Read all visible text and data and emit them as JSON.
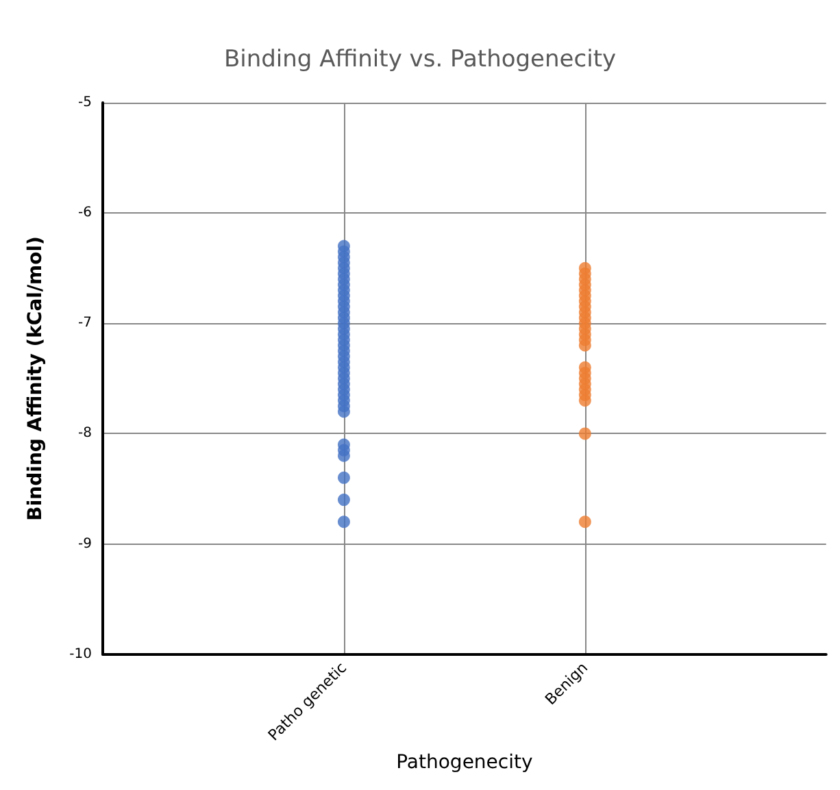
{
  "chart_data": {
    "type": "scatter",
    "title": "Binding Affinity vs. Pathogenecity",
    "xlabel": "Pathogenecity",
    "ylabel": "Binding Affinity (kCal/mol)",
    "categories": [
      null,
      "Patho genetic",
      "Benign",
      null
    ],
    "series": [
      {
        "color": "#4472c4",
        "x": [
          "Patho genetic",
          "Patho genetic",
          "Patho genetic",
          "Patho genetic",
          "Patho genetic",
          "Patho genetic",
          "Patho genetic",
          "Patho genetic",
          "Patho genetic",
          "Patho genetic",
          "Patho genetic",
          "Patho genetic",
          "Patho genetic",
          "Patho genetic",
          "Patho genetic",
          "Patho genetic",
          "Patho genetic",
          "Patho genetic",
          "Patho genetic",
          "Patho genetic",
          "Patho genetic",
          "Patho genetic",
          "Patho genetic",
          "Patho genetic",
          "Patho genetic",
          "Patho genetic",
          "Patho genetic",
          "Patho genetic",
          "Patho genetic",
          "Patho genetic",
          "Patho genetic",
          "Patho genetic",
          "Patho genetic",
          "Patho genetic",
          "Patho genetic",
          "Patho genetic",
          "Patho genetic"
        ],
        "values": [
          -6.3,
          -6.35,
          -6.4,
          -6.45,
          -6.5,
          -6.55,
          -6.6,
          -6.65,
          -6.7,
          -6.75,
          -6.8,
          -6.85,
          -6.9,
          -6.95,
          -7.0,
          -7.05,
          -7.1,
          -7.15,
          -7.2,
          -7.25,
          -7.3,
          -7.35,
          -7.4,
          -7.45,
          -7.5,
          -7.55,
          -7.6,
          -7.65,
          -7.7,
          -7.75,
          -7.8,
          -8.1,
          -8.15,
          -8.2,
          -8.4,
          -8.6,
          -8.8
        ]
      },
      {
        "color": "#ed7d31",
        "x": [
          "Benign",
          "Benign",
          "Benign",
          "Benign",
          "Benign",
          "Benign",
          "Benign",
          "Benign",
          "Benign",
          "Benign",
          "Benign",
          "Benign",
          "Benign",
          "Benign",
          "Benign",
          "Benign",
          "Benign",
          "Benign",
          "Benign",
          "Benign",
          "Benign",
          "Benign",
          "Benign",
          "Benign"
        ],
        "values": [
          -6.5,
          -6.55,
          -6.6,
          -6.65,
          -6.7,
          -6.75,
          -6.8,
          -6.85,
          -6.9,
          -6.95,
          -7.0,
          -7.05,
          -7.1,
          -7.15,
          -7.2,
          -7.4,
          -7.45,
          -7.5,
          -7.55,
          -7.6,
          -7.65,
          -7.7,
          -8.0,
          -8.8
        ]
      }
    ],
    "ylim": [
      -10,
      -5
    ],
    "yticks": [
      -10,
      -9,
      -8,
      -7,
      -6,
      -5
    ],
    "grid": true,
    "marker": "circle"
  }
}
